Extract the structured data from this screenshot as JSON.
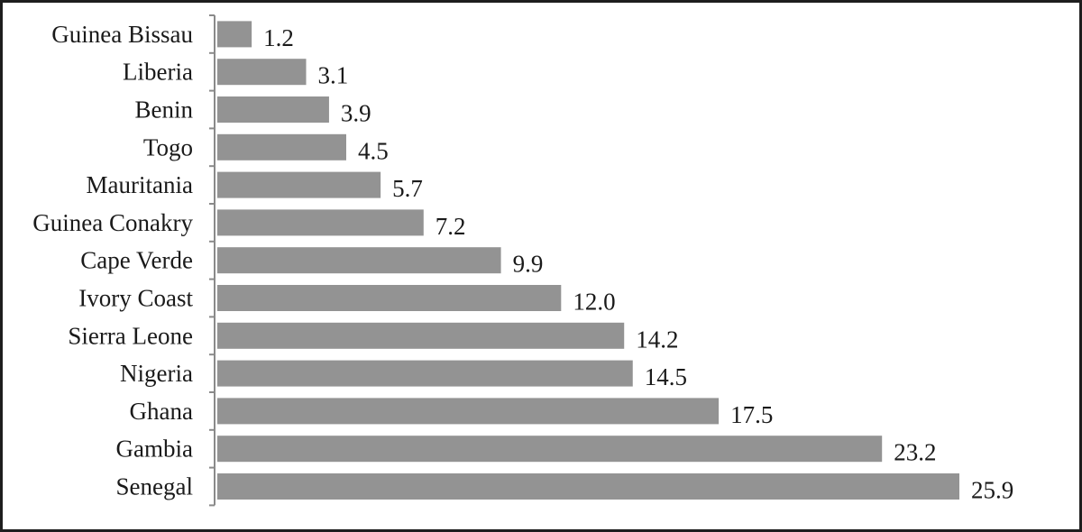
{
  "chart_data": {
    "type": "bar",
    "orientation": "horizontal",
    "categories": [
      "Guinea Bissau",
      "Liberia",
      "Benin",
      "Togo",
      "Mauritania",
      "Guinea Conakry",
      "Cape Verde",
      "Ivory Coast",
      "Sierra Leone",
      "Nigeria",
      "Ghana",
      "Gambia",
      "Senegal"
    ],
    "values": [
      1.2,
      3.1,
      3.9,
      4.5,
      5.7,
      7.2,
      9.9,
      12.0,
      14.2,
      14.5,
      17.5,
      23.2,
      25.9
    ],
    "value_labels": [
      "1.2",
      "3.1",
      "3.9",
      "4.5",
      "5.7",
      "7.2",
      "9.9",
      "12.0",
      "14.2",
      "14.5",
      "17.5",
      "23.2",
      "25.9"
    ],
    "title": "",
    "xlabel": "",
    "ylabel": "",
    "xlim": [
      0,
      25.9
    ],
    "grid": false,
    "legend": "none",
    "bar_color": "#939393",
    "axis_color": "#8a8a8a",
    "text_color": "#1a1a1a"
  }
}
